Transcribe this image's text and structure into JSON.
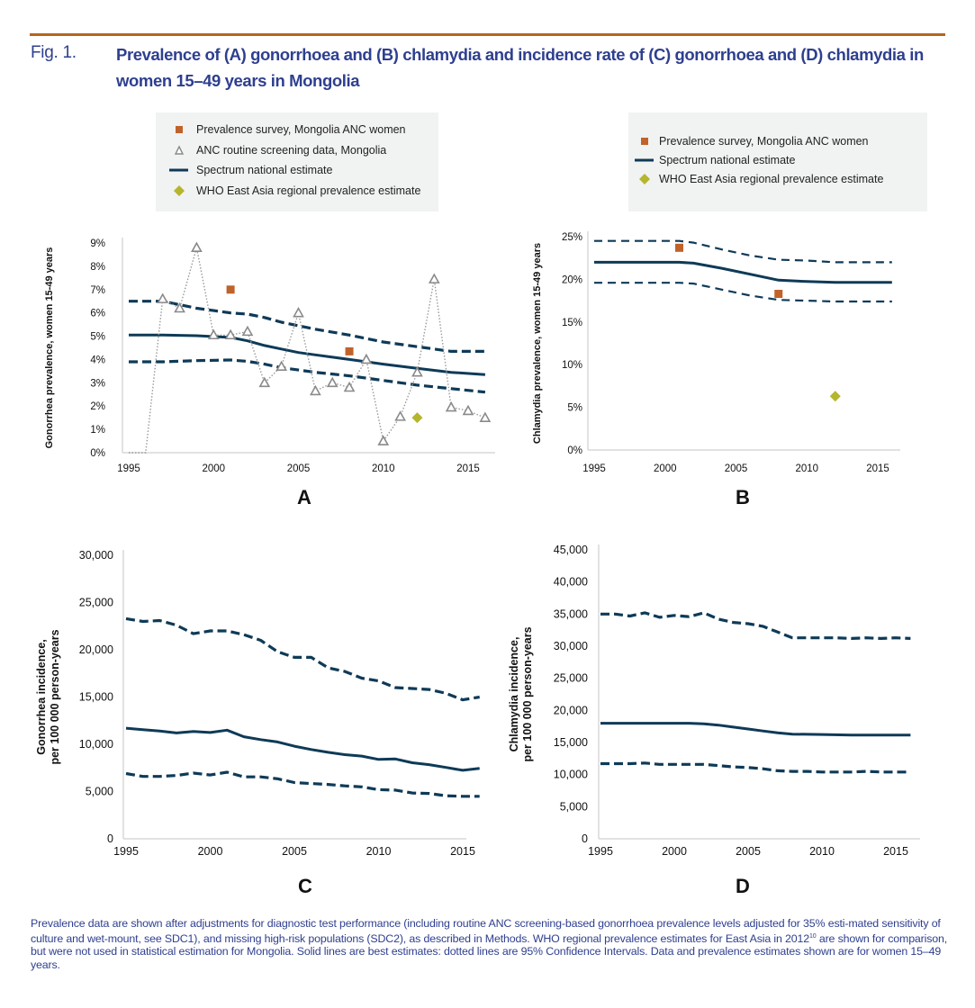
{
  "figure": {
    "label": "Fig. 1.",
    "title": "Prevalence of (A) gonorrhoea and (B) chlamydia and incidence rate of (C) gonorrhoea and (D) chlamydia in women 15–49 years in Mongolia",
    "footnote_part1": "Prevalence data are shown after adjustments for diagnostic test performance (including routine ANC screening-based gonorrhoea prevalence levels adjusted for 35% esti-mated sensitivity of culture and wet-mount, see SDC1), and missing high-risk populations (SDC2), as described in Methods. WHO regional prevalence estimates for East Asia in 2012",
    "footnote_sup": "10",
    "footnote_part2": " are shown for comparison, but were not used in statistical estimation for Mongolia. Solid lines are best estimates: dotted lines are 95% Confidence Intervals. Data and prevalence estimates shown are for women 15–49 years."
  },
  "colors": {
    "accent_rule": "#b7651e",
    "title_blue": "#2e3f8f",
    "spectrum_line": "#0e3a57",
    "survey_square": "#c0622a",
    "who_diamond": "#b5b52e",
    "anc_triangle": "#8a8a8a",
    "legend_bg": "#f1f2f2",
    "axis": "#d9d9d9"
  },
  "legends": {
    "A": [
      {
        "symbol": "square",
        "label": "Prevalence survey, Mongolia ANC women"
      },
      {
        "symbol": "triangle",
        "label": "ANC routine screening data, Mongolia"
      },
      {
        "symbol": "line",
        "label": "Spectrum national estimate"
      },
      {
        "symbol": "diamond",
        "label": "WHO East Asia regional prevalence estimate"
      }
    ],
    "B": [
      {
        "symbol": "square",
        "label": "Prevalence survey, Mongolia ANC women"
      },
      {
        "symbol": "line",
        "label": "Spectrum national estimate"
      },
      {
        "symbol": "diamond",
        "label": "WHO East Asia regional prevalence estimate"
      }
    ]
  },
  "chart_data": [
    {
      "id": "A",
      "panel_label": "A",
      "type": "line",
      "title": "",
      "xlabel": "",
      "ylabel": "Gonorrhea prevalence, women 15-49 years",
      "xlim": [
        1995,
        2016
      ],
      "ylim": [
        0,
        9
      ],
      "y_is_percent": true,
      "xticks": [
        1995,
        2000,
        2005,
        2010,
        2015
      ],
      "yticks": [
        0,
        1,
        2,
        3,
        4,
        5,
        6,
        7,
        8,
        9
      ],
      "ytick_labels": [
        "0%",
        "1%",
        "2%",
        "3%",
        "4%",
        "5%",
        "6%",
        "7%",
        "8%",
        "9%"
      ],
      "grid": false,
      "series": [
        {
          "name": "Spectrum national estimate",
          "style": "solid",
          "x": [
            1995,
            1997,
            1999,
            2001,
            2002,
            2003,
            2004,
            2005,
            2006,
            2008,
            2010,
            2012,
            2014,
            2016
          ],
          "values": [
            5.05,
            5.05,
            5.02,
            4.95,
            4.8,
            4.6,
            4.45,
            4.3,
            4.2,
            4.0,
            3.8,
            3.62,
            3.45,
            3.35
          ]
        },
        {
          "name": "Spectrum upper 95% CI",
          "style": "dashed",
          "x": [
            1995,
            1997,
            1998,
            1999,
            2000,
            2001,
            2002,
            2003,
            2004,
            2005,
            2006,
            2008,
            2010,
            2012,
            2014,
            2016
          ],
          "values": [
            6.5,
            6.5,
            6.35,
            6.2,
            6.1,
            6.0,
            5.95,
            5.8,
            5.6,
            5.45,
            5.3,
            5.05,
            4.75,
            4.55,
            4.35,
            4.35
          ]
        },
        {
          "name": "Spectrum lower 95% CI",
          "style": "dashed",
          "x": [
            1995,
            1997,
            1999,
            2001,
            2002,
            2003,
            2004,
            2005,
            2006,
            2008,
            2010,
            2012,
            2014,
            2016
          ],
          "values": [
            3.9,
            3.9,
            3.95,
            3.98,
            3.92,
            3.8,
            3.65,
            3.55,
            3.45,
            3.3,
            3.1,
            2.9,
            2.75,
            2.6
          ]
        },
        {
          "name": "ANC routine screening data, Mongolia",
          "style": "dotted-triangles",
          "x": [
            1995,
            1996,
            1997,
            1998,
            1999,
            2000,
            2001,
            2002,
            2003,
            2004,
            2005,
            2006,
            2007,
            2008,
            2009,
            2010,
            2011,
            2012,
            2013,
            2014,
            2015,
            2016
          ],
          "values": [
            0,
            0,
            6.6,
            6.2,
            8.8,
            5.05,
            5.05,
            5.2,
            3.0,
            3.7,
            6.0,
            2.65,
            3.0,
            2.8,
            4.0,
            0.5,
            1.55,
            3.45,
            7.45,
            1.95,
            1.8,
            1.5
          ],
          "markers_from": 1997
        },
        {
          "name": "Prevalence survey, Mongolia ANC women",
          "style": "square",
          "x": [
            2001,
            2008
          ],
          "values": [
            7.0,
            4.35
          ]
        },
        {
          "name": "WHO East Asia regional prevalence estimate",
          "style": "diamond",
          "x": [
            2012
          ],
          "values": [
            1.5
          ]
        }
      ]
    },
    {
      "id": "B",
      "panel_label": "B",
      "type": "line",
      "title": "",
      "xlabel": "",
      "ylabel": "Chlamydia prevalence, women 15-49 years",
      "xlim": [
        1995,
        2016
      ],
      "ylim": [
        0,
        25
      ],
      "y_is_percent": true,
      "xticks": [
        1995,
        2000,
        2005,
        2010,
        2015
      ],
      "yticks": [
        0,
        5,
        10,
        15,
        20,
        25
      ],
      "ytick_labels": [
        "0%",
        "5%",
        "10%",
        "15%",
        "20%",
        "25%"
      ],
      "grid": false,
      "series": [
        {
          "name": "Spectrum national estimate",
          "style": "solid",
          "x": [
            1995,
            2000,
            2001,
            2002,
            2004,
            2006,
            2008,
            2010,
            2012,
            2016
          ],
          "values": [
            22.0,
            22.0,
            22.0,
            21.9,
            21.3,
            20.6,
            19.9,
            19.75,
            19.65,
            19.65
          ]
        },
        {
          "name": "Spectrum upper 95% CI",
          "style": "dashed",
          "x": [
            1995,
            2000,
            2001,
            2002,
            2004,
            2006,
            2008,
            2010,
            2012,
            2016
          ],
          "values": [
            24.5,
            24.5,
            24.5,
            24.3,
            23.5,
            22.8,
            22.3,
            22.2,
            22.0,
            22.0
          ]
        },
        {
          "name": "Spectrum lower 95% CI",
          "style": "dashed",
          "x": [
            1995,
            2000,
            2001,
            2002,
            2004,
            2006,
            2008,
            2010,
            2012,
            2016
          ],
          "values": [
            19.6,
            19.6,
            19.6,
            19.5,
            18.8,
            18.1,
            17.6,
            17.5,
            17.4,
            17.4
          ]
        },
        {
          "name": "Prevalence survey, Mongolia ANC women",
          "style": "square",
          "x": [
            2001,
            2008
          ],
          "values": [
            23.7,
            18.3
          ]
        },
        {
          "name": "WHO East Asia regional prevalence estimate",
          "style": "diamond",
          "x": [
            2012
          ],
          "values": [
            6.3
          ]
        }
      ]
    },
    {
      "id": "C",
      "panel_label": "C",
      "type": "line",
      "title": "",
      "xlabel": "",
      "ylabel": "Gonorrhea incidence, per 100 000 person-years",
      "ylabel_lines": [
        "Gonorrhea incidence,",
        "per 100 000 person-years"
      ],
      "xlim": [
        1995,
        2016
      ],
      "ylim": [
        0,
        30000
      ],
      "xticks": [
        1995,
        2000,
        2005,
        2010,
        2015
      ],
      "yticks": [
        0,
        5000,
        10000,
        15000,
        20000,
        25000,
        30000
      ],
      "ytick_labels": [
        "0",
        "5,000",
        "10,000",
        "15,000",
        "20,000",
        "25,000",
        "30,000"
      ],
      "grid": false,
      "series": [
        {
          "name": "Spectrum national estimate",
          "style": "solid",
          "x": [
            1995,
            1996,
            1997,
            1998,
            1999,
            2000,
            2001,
            2002,
            2003,
            2004,
            2005,
            2006,
            2007,
            2008,
            2009,
            2010,
            2011,
            2012,
            2013,
            2014,
            2015,
            2016
          ],
          "values": [
            11700,
            11550,
            11400,
            11200,
            11350,
            11250,
            11500,
            10800,
            10500,
            10250,
            9800,
            9450,
            9150,
            8900,
            8750,
            8400,
            8450,
            8050,
            7850,
            7550,
            7250,
            7450
          ]
        },
        {
          "name": "Spectrum upper 95% CI",
          "style": "dashed",
          "x": [
            1995,
            1996,
            1997,
            1998,
            1999,
            2000,
            2001,
            2002,
            2003,
            2004,
            2005,
            2006,
            2007,
            2008,
            2009,
            2010,
            2011,
            2012,
            2013,
            2014,
            2015,
            2016
          ],
          "values": [
            23300,
            23000,
            23100,
            22600,
            21700,
            22000,
            22000,
            21600,
            21000,
            19800,
            19200,
            19200,
            18100,
            17700,
            17000,
            16700,
            16000,
            15900,
            15800,
            15400,
            14700,
            15000
          ]
        },
        {
          "name": "Spectrum lower 95% CI",
          "style": "dashed",
          "x": [
            1995,
            1996,
            1997,
            1998,
            1999,
            2000,
            2001,
            2002,
            2003,
            2004,
            2005,
            2006,
            2007,
            2008,
            2009,
            2010,
            2011,
            2012,
            2013,
            2014,
            2015,
            2016
          ],
          "values": [
            6900,
            6600,
            6600,
            6700,
            6950,
            6750,
            7050,
            6550,
            6550,
            6350,
            5950,
            5850,
            5750,
            5600,
            5500,
            5200,
            5150,
            4850,
            4800,
            4550,
            4500,
            4500
          ]
        }
      ]
    },
    {
      "id": "D",
      "panel_label": "D",
      "type": "line",
      "title": "",
      "xlabel": "",
      "ylabel": "Chlamydia incidence, per 100 000 person-years",
      "ylabel_lines": [
        "Chlamydia incidence,",
        "per 100 000 person-years"
      ],
      "xlim": [
        1995,
        2016
      ],
      "ylim": [
        0,
        45000
      ],
      "xticks": [
        1995,
        2000,
        2005,
        2010,
        2015
      ],
      "yticks": [
        0,
        5000,
        10000,
        15000,
        20000,
        25000,
        30000,
        35000,
        40000,
        45000
      ],
      "ytick_labels": [
        "0",
        "5,000",
        "10,000",
        "15,000",
        "20,000",
        "25,000",
        "30,000",
        "35,000",
        "40,000",
        "45,000"
      ],
      "grid": false,
      "series": [
        {
          "name": "Spectrum national estimate",
          "style": "solid",
          "x": [
            1995,
            2000,
            2001,
            2002,
            2003,
            2004,
            2005,
            2006,
            2007,
            2008,
            2010,
            2012,
            2014,
            2016
          ],
          "values": [
            18000,
            18000,
            18000,
            17900,
            17700,
            17400,
            17100,
            16800,
            16500,
            16300,
            16250,
            16150,
            16150,
            16150
          ]
        },
        {
          "name": "Spectrum upper 95% CI",
          "style": "dashed",
          "x": [
            1995,
            1996,
            1997,
            1998,
            1999,
            2000,
            2001,
            2002,
            2003,
            2004,
            2005,
            2006,
            2007,
            2008,
            2009,
            2010,
            2011,
            2012,
            2013,
            2014,
            2015,
            2016
          ],
          "values": [
            35000,
            35000,
            34700,
            35200,
            34500,
            34800,
            34600,
            35200,
            34200,
            33700,
            33500,
            33100,
            32200,
            31300,
            31300,
            31300,
            31300,
            31200,
            31300,
            31200,
            31300,
            31200
          ]
        },
        {
          "name": "Spectrum lower 95% CI",
          "style": "dashed",
          "x": [
            1995,
            1996,
            1997,
            1998,
            1999,
            2000,
            2001,
            2002,
            2003,
            2004,
            2005,
            2006,
            2007,
            2008,
            2009,
            2010,
            2011,
            2012,
            2013,
            2014,
            2015,
            2016
          ],
          "values": [
            11700,
            11700,
            11700,
            11800,
            11600,
            11600,
            11600,
            11600,
            11400,
            11200,
            11100,
            10900,
            10600,
            10500,
            10500,
            10400,
            10400,
            10400,
            10500,
            10400,
            10400,
            10400
          ]
        }
      ]
    }
  ]
}
